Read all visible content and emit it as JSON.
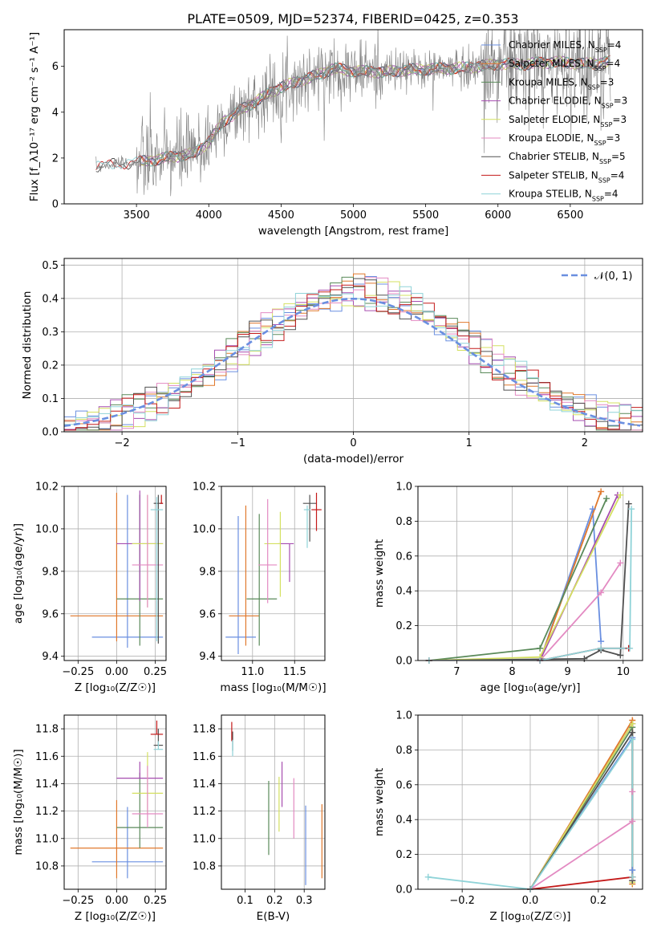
{
  "title": "PLATE=0509, MJD=52374, FIBERID=0425, z=0.353",
  "series_colors": [
    "#6a8fe0",
    "#e0782c",
    "#5a8a5a",
    "#a64db0",
    "#d4e060",
    "#e38ac2",
    "#505050",
    "#c41a1a",
    "#8fd3d8"
  ],
  "chart_data": [
    {
      "id": "spectrum",
      "type": "line",
      "xlabel": "wavelength [Angstrom, rest frame]",
      "ylabel": "Flux [f_λ10^-17 erg cm^-2 s^-1 A^-1]",
      "xlim": [
        3000,
        7000
      ],
      "ylim": [
        0,
        7.6
      ],
      "xticks": [
        3500,
        4000,
        4500,
        5000,
        5500,
        6000,
        6500
      ],
      "yticks": [
        0,
        2,
        4,
        6
      ],
      "legend_position": "upper-right",
      "legend": [
        "Chabrier MILES, N_SSP=4",
        "Salpeter MILES, N_SSP=4",
        "Kroupa MILES, N_SSP=3",
        "Chabrier ELODIE, N_SSP=3",
        "Salpeter ELODIE, N_SSP=3",
        "Kroupa ELODIE, N_SSP=3",
        "Chabrier STELIB, N_SSP=5",
        "Salpeter STELIB, N_SSP=4",
        "Kroupa STELIB, N_SSP=4"
      ],
      "continuum": {
        "x": [
          3220,
          3350,
          3500,
          3700,
          3900,
          4000,
          4100,
          4300,
          4500,
          4700,
          4860,
          5000,
          5200,
          5400,
          5600,
          5800,
          6000,
          6200,
          6400,
          6600,
          6780
        ],
        "y": [
          1.6,
          1.75,
          1.8,
          2.0,
          2.2,
          2.7,
          3.6,
          4.4,
          5.1,
          5.5,
          5.9,
          5.8,
          5.75,
          5.85,
          5.9,
          5.95,
          6.1,
          6.1,
          6.2,
          6.1,
          6.2
        ]
      }
    },
    {
      "id": "residuals",
      "type": "histogram",
      "xlabel": "(data-model)/error",
      "ylabel": "Normed distribution",
      "xlim": [
        -2.5,
        2.5
      ],
      "ylim": [
        0,
        0.52
      ],
      "xticks": [
        -2,
        -1,
        0,
        1,
        2
      ],
      "yticks": [
        0.0,
        0.1,
        0.2,
        0.3,
        0.4,
        0.5
      ],
      "legend": [
        "𝒩(0, 1)"
      ],
      "legend_position": "upper-right",
      "bin_width": 0.1
    },
    {
      "id": "age_vs_Z",
      "type": "errorbar",
      "xlabel": "Z [log10(Z/Z☉)]",
      "ylabel": "age  [log10(age/yr)]",
      "xlim": [
        -0.34,
        0.32
      ],
      "ylim": [
        9.38,
        10.2
      ],
      "xticks": [
        -0.25,
        0.0,
        0.25
      ],
      "yticks": [
        9.4,
        9.6,
        9.8,
        10.0,
        10.2
      ],
      "points": [
        {
          "x": 0.07,
          "xerr": [
            0.23,
            0.23
          ],
          "y": 9.49,
          "yerr": [
            0.05,
            0.67
          ]
        },
        {
          "x": 0.0,
          "xerr": [
            0.3,
            0.3
          ],
          "y": 9.59,
          "yerr": [
            0.12,
            0.58
          ]
        },
        {
          "x": 0.15,
          "xerr": [
            0.15,
            0.15
          ],
          "y": 9.67,
          "yerr": [
            0.22,
            0.49
          ]
        },
        {
          "x": 0.15,
          "xerr": [
            0.15,
            0.15
          ],
          "y": 9.93,
          "yerr": [
            0.27,
            0.25
          ]
        },
        {
          "x": 0.2,
          "xerr": [
            0.1,
            0.1
          ],
          "y": 9.93,
          "yerr": [
            0.3,
            0.23
          ]
        },
        {
          "x": 0.2,
          "xerr": [
            0.1,
            0.1
          ],
          "y": 9.83,
          "yerr": [
            0.2,
            0.33
          ]
        },
        {
          "x": 0.27,
          "xerr": [
            0.03,
            0.03
          ],
          "y": 10.12,
          "yerr": [
            0.66,
            0.04
          ]
        },
        {
          "x": 0.29,
          "xerr": [
            0.01,
            0.01
          ],
          "y": 10.12,
          "yerr": [
            0.0,
            0.04
          ]
        },
        {
          "x": 0.26,
          "xerr": [
            0.04,
            0.04
          ],
          "y": 10.09,
          "yerr": [
            0.62,
            0.06
          ]
        }
      ]
    },
    {
      "id": "age_vs_mass",
      "type": "errorbar",
      "xlabel": "mass [log10(M/M☉)]",
      "ylabel": "",
      "xlim": [
        10.63,
        11.86
      ],
      "ylim": [
        9.38,
        10.2
      ],
      "xticks": [
        11.0,
        11.5
      ],
      "yticks": [
        9.4,
        9.6,
        9.8,
        10.0,
        10.2
      ],
      "points": [
        {
          "x": 10.83,
          "xerr": [
            0.15,
            0.21
          ],
          "y": 9.49,
          "yerr": [
            0.08,
            0.57
          ]
        },
        {
          "x": 10.92,
          "xerr": [
            0.2,
            0.16
          ],
          "y": 9.59,
          "yerr": [
            0.14,
            0.52
          ]
        },
        {
          "x": 11.08,
          "xerr": [
            0.15,
            0.21
          ],
          "y": 9.67,
          "yerr": [
            0.22,
            0.4
          ]
        },
        {
          "x": 11.44,
          "xerr": [
            0.13,
            0.05
          ],
          "y": 9.93,
          "yerr": [
            0.18,
            0.0
          ]
        },
        {
          "x": 11.33,
          "xerr": [
            0.19,
            0.0
          ],
          "y": 9.93,
          "yerr": [
            0.25,
            0.15
          ]
        },
        {
          "x": 11.18,
          "xerr": [
            0.11,
            0.11
          ],
          "y": 9.83,
          "yerr": [
            0.18,
            0.31
          ]
        },
        {
          "x": 11.68,
          "xerr": [
            0.08,
            0.08
          ],
          "y": 10.12,
          "yerr": [
            0.18,
            0.04
          ]
        },
        {
          "x": 11.76,
          "xerr": [
            0.06,
            0.06
          ],
          "y": 10.09,
          "yerr": [
            0.1,
            0.08
          ]
        },
        {
          "x": 11.65,
          "xerr": [
            0.04,
            0.04
          ],
          "y": 10.09,
          "yerr": [
            0.18,
            0.02
          ]
        }
      ]
    },
    {
      "id": "weight_vs_age",
      "type": "line",
      "xlabel": "age  [log10(age/yr)]",
      "ylabel": "mass weight",
      "xlim": [
        6.3,
        10.35
      ],
      "ylim": [
        0,
        1.0
      ],
      "xticks": [
        7,
        8,
        9,
        10
      ],
      "yticks": [
        0.0,
        0.2,
        0.4,
        0.6,
        0.8,
        1.0
      ],
      "series": [
        {
          "x": [
            6.5,
            8.5,
            9.45,
            9.6
          ],
          "y": [
            0.0,
            0.0,
            0.87,
            0.11
          ]
        },
        {
          "x": [
            6.5,
            8.5,
            9.6
          ],
          "y": [
            0.0,
            0.0,
            0.97
          ]
        },
        {
          "x": [
            6.5,
            8.5,
            9.7
          ],
          "y": [
            0.0,
            0.07,
            0.93
          ]
        },
        {
          "x": [
            6.5,
            8.5,
            9.9
          ],
          "y": [
            0.0,
            0.0,
            0.95
          ]
        },
        {
          "x": [
            6.5,
            8.5,
            9.95
          ],
          "y": [
            0.0,
            0.02,
            0.95
          ]
        },
        {
          "x": [
            6.5,
            8.5,
            9.6,
            9.95
          ],
          "y": [
            0.0,
            0.0,
            0.39,
            0.56
          ]
        },
        {
          "x": [
            6.5,
            9.3,
            9.6,
            9.95,
            10.1
          ],
          "y": [
            0.0,
            0.01,
            0.06,
            0.03,
            0.9
          ]
        },
        {
          "x": [
            6.5,
            8.5,
            9.6,
            10.1
          ],
          "y": [
            0.0,
            0.0,
            0.07,
            0.07
          ]
        },
        {
          "x": [
            6.5,
            8.5,
            9.6,
            10.12,
            10.15
          ],
          "y": [
            0.0,
            0.0,
            0.07,
            0.07,
            0.87
          ]
        }
      ]
    },
    {
      "id": "mass_vs_Z",
      "type": "errorbar",
      "xlabel": "Z [log10(Z/Z☉)]",
      "ylabel": "mass [log10(M/M☉)]",
      "xlim": [
        -0.34,
        0.32
      ],
      "ylim": [
        10.63,
        11.9
      ],
      "xticks": [
        -0.25,
        0.0,
        0.25
      ],
      "yticks": [
        10.8,
        11.0,
        11.2,
        11.4,
        11.6,
        11.8
      ],
      "points": [
        {
          "x": 0.07,
          "xerr": [
            0.23,
            0.23
          ],
          "y": 10.83,
          "yerr": [
            0.12,
            0.4
          ]
        },
        {
          "x": 0.0,
          "xerr": [
            0.3,
            0.3
          ],
          "y": 10.93,
          "yerr": [
            0.22,
            0.35
          ]
        },
        {
          "x": 0.15,
          "xerr": [
            0.15,
            0.15
          ],
          "y": 11.08,
          "yerr": [
            0.15,
            0.4
          ]
        },
        {
          "x": 0.15,
          "xerr": [
            0.15,
            0.15
          ],
          "y": 11.44,
          "yerr": [
            0.0,
            0.12
          ]
        },
        {
          "x": 0.2,
          "xerr": [
            0.1,
            0.1
          ],
          "y": 11.33,
          "yerr": [
            0.15,
            0.3
          ]
        },
        {
          "x": 0.2,
          "xerr": [
            0.1,
            0.1
          ],
          "y": 11.18,
          "yerr": [
            0.1,
            0.35
          ]
        },
        {
          "x": 0.27,
          "xerr": [
            0.03,
            0.03
          ],
          "y": 11.68,
          "yerr": [
            0.0,
            0.12
          ]
        },
        {
          "x": 0.26,
          "xerr": [
            0.04,
            0.04
          ],
          "y": 11.76,
          "yerr": [
            0.0,
            0.1
          ]
        },
        {
          "x": 0.27,
          "xerr": [
            0.03,
            0.03
          ],
          "y": 11.65,
          "yerr": [
            0.0,
            0.06
          ]
        }
      ]
    },
    {
      "id": "mass_vs_EBV",
      "type": "errorbar",
      "xlabel": "E(B-V)",
      "ylabel": "",
      "xlim": [
        0.02,
        0.37
      ],
      "ylim": [
        10.63,
        11.9
      ],
      "xticks": [
        0.1,
        0.2,
        0.3
      ],
      "yticks": [
        10.8,
        11.0,
        11.2,
        11.4,
        11.6,
        11.8
      ],
      "points": [
        {
          "x": 0.305,
          "y": 10.95,
          "yerr": [
            0.29,
            0.29
          ]
        },
        {
          "x": 0.36,
          "y": 10.98,
          "yerr": [
            0.27,
            0.27
          ]
        },
        {
          "x": 0.18,
          "y": 11.15,
          "yerr": [
            0.27,
            0.27
          ]
        },
        {
          "x": 0.225,
          "y": 11.39,
          "yerr": [
            0.16,
            0.17
          ]
        },
        {
          "x": 0.215,
          "y": 11.25,
          "yerr": [
            0.2,
            0.2
          ]
        },
        {
          "x": 0.265,
          "y": 11.22,
          "yerr": [
            0.22,
            0.22
          ]
        },
        {
          "x": 0.058,
          "y": 11.7,
          "yerr": [
            0.06,
            0.08
          ]
        },
        {
          "x": 0.055,
          "y": 11.75,
          "yerr": [
            0.04,
            0.1
          ]
        },
        {
          "x": 0.058,
          "y": 11.66,
          "yerr": [
            0.06,
            0.06
          ]
        }
      ]
    },
    {
      "id": "weight_vs_Z",
      "type": "line",
      "xlabel": "Z [log10(Z/Z☉)]",
      "ylabel": "mass weight",
      "xlim": [
        -0.33,
        0.33
      ],
      "ylim": [
        0,
        1.0
      ],
      "xticks": [
        -0.2,
        0.0,
        0.2
      ],
      "yticks": [
        0.0,
        0.2,
        0.4,
        0.6,
        0.8,
        1.0
      ],
      "series": [
        {
          "x": [
            0.0,
            0.3,
            0.3
          ],
          "y": [
            0.0,
            0.87,
            0.11
          ]
        },
        {
          "x": [
            0.0,
            0.3,
            0.3
          ],
          "y": [
            0.0,
            0.97,
            0.03
          ]
        },
        {
          "x": [
            0.0,
            0.3,
            0.3
          ],
          "y": [
            0.0,
            0.93,
            0.07
          ]
        },
        {
          "x": [
            0.0,
            0.3,
            0.3
          ],
          "y": [
            0.0,
            0.95,
            0.05
          ]
        },
        {
          "x": [
            0.0,
            0.3,
            0.3
          ],
          "y": [
            0.0,
            0.95,
            0.04
          ]
        },
        {
          "x": [
            0.0,
            0.3,
            0.3
          ],
          "y": [
            0.0,
            0.39,
            0.56
          ]
        },
        {
          "x": [
            0.0,
            0.3,
            0.3
          ],
          "y": [
            0.0,
            0.9,
            0.05
          ]
        },
        {
          "x": [
            0.0,
            0.3,
            0.3
          ],
          "y": [
            0.0,
            0.07,
            0.07
          ]
        },
        {
          "x": [
            -0.3,
            0.0,
            0.3,
            0.3
          ],
          "y": [
            0.07,
            0.0,
            0.86,
            0.07
          ]
        }
      ]
    }
  ]
}
